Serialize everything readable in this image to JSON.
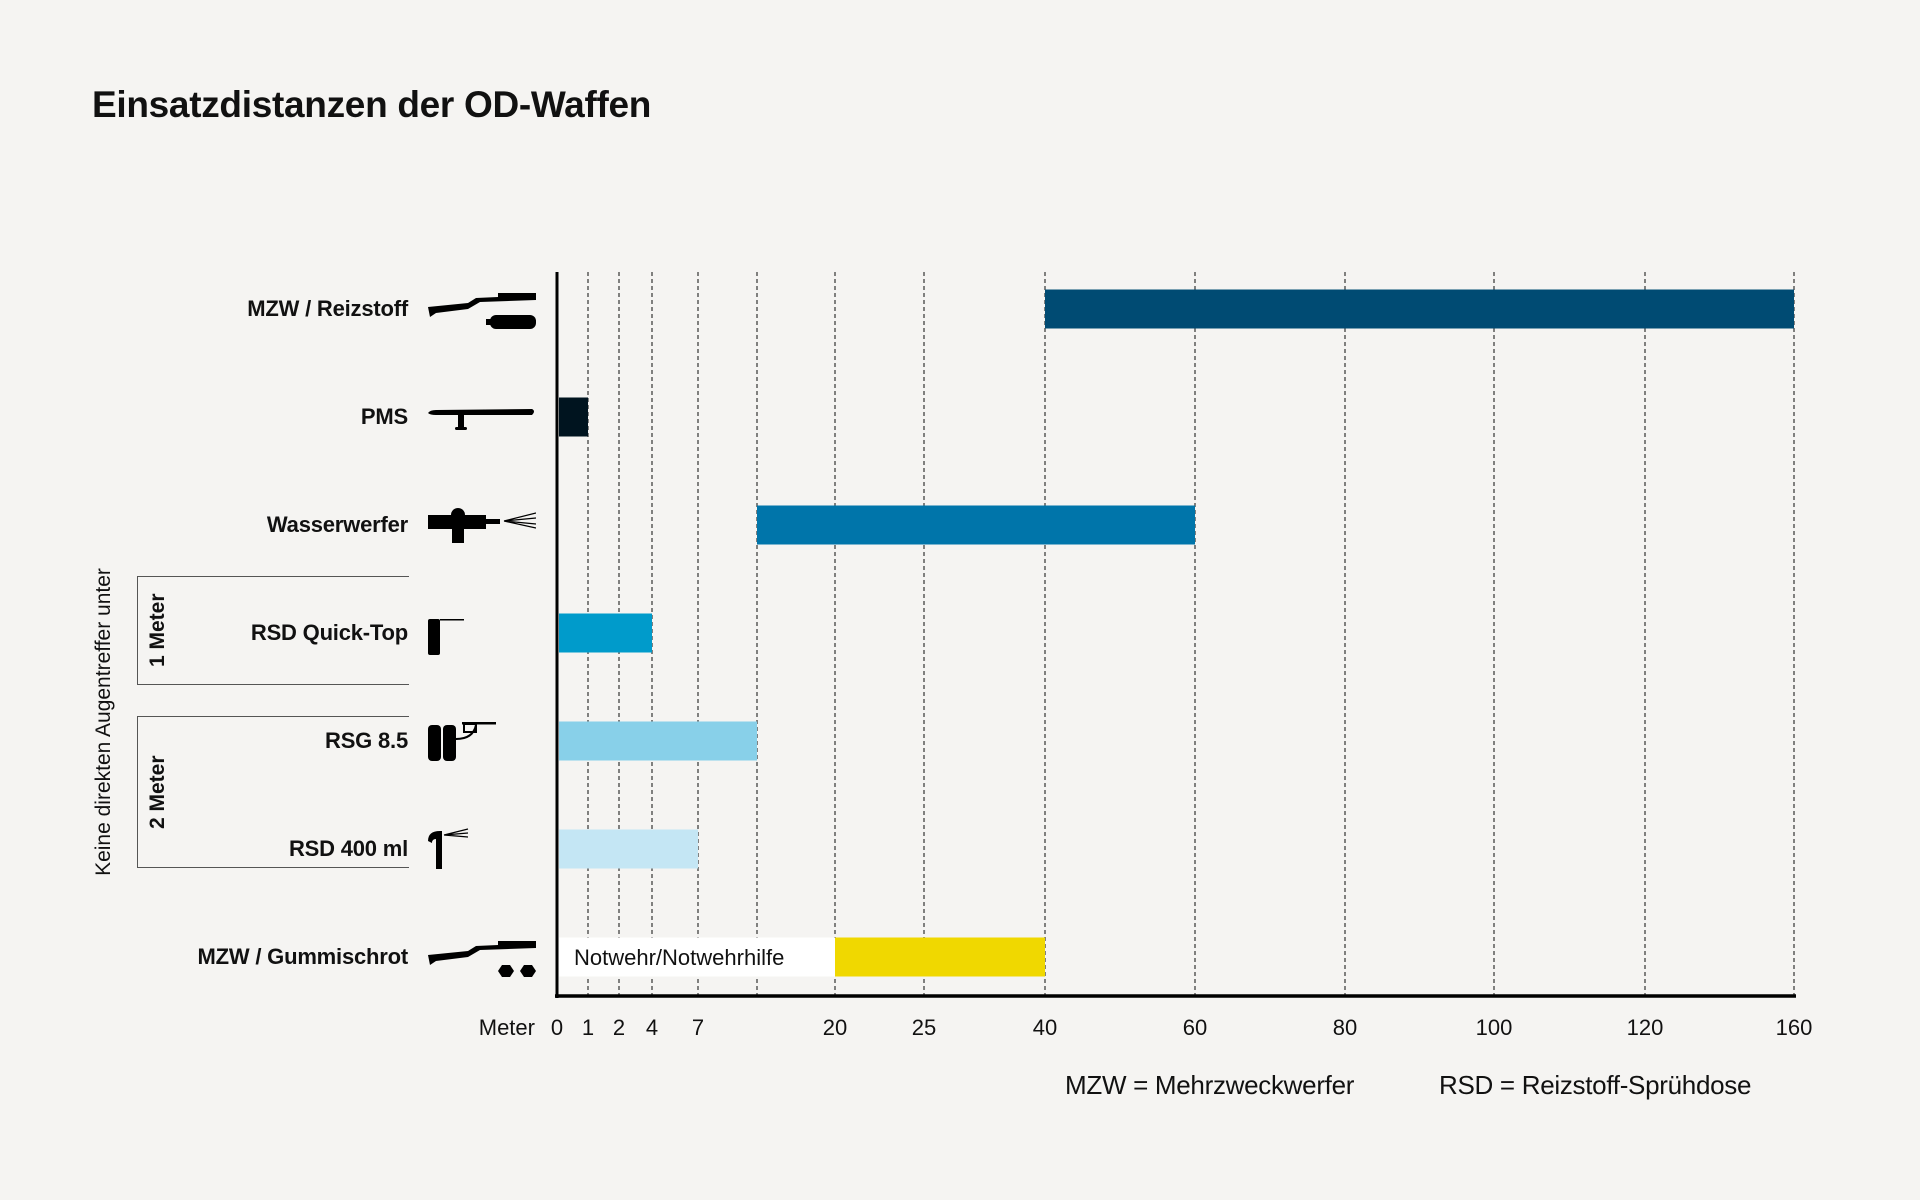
{
  "title": "Einsatzdistanzen der OD-Waffen",
  "side_note": "Keine direkten Augentreffer unter",
  "brackets": [
    {
      "label": "1 Meter"
    },
    {
      "label": "2 Meter"
    }
  ],
  "footnotes": [
    "MZW = Mehrzweckwerfer",
    "RSD = Reizstoff-Sprühdose"
  ],
  "chart_data": {
    "type": "bar",
    "orientation": "horizontal-range",
    "title": "Einsatzdistanzen der OD-Waffen",
    "xlabel": "Meter",
    "xlim": [
      0,
      160
    ],
    "x_scale": "nonlinear (piecewise by ticks)",
    "grid": "vertical dashed",
    "ticks": [
      {
        "value": 0,
        "label": "0"
      },
      {
        "value": 1,
        "label": "1"
      },
      {
        "value": 2,
        "label": "2"
      },
      {
        "value": 4,
        "label": "4"
      },
      {
        "value": 7,
        "label": "7"
      },
      {
        "value": 10,
        "label": ""
      },
      {
        "value": 20,
        "label": "20"
      },
      {
        "value": 25,
        "label": "25"
      },
      {
        "value": 40,
        "label": "40"
      },
      {
        "value": 60,
        "label": "60"
      },
      {
        "value": 80,
        "label": "80"
      },
      {
        "value": 100,
        "label": "100"
      },
      {
        "value": 120,
        "label": "120"
      },
      {
        "value": 160,
        "label": "160"
      }
    ],
    "series": [
      {
        "category": "MZW / Reizstoff",
        "icon": "launcher-with-canister-icon",
        "start": 40,
        "end": 160,
        "color": "#004b73"
      },
      {
        "category": "PMS",
        "icon": "baton-icon",
        "start": 0,
        "end": 1,
        "color": "#00141f"
      },
      {
        "category": "Wasserwerfer",
        "icon": "water-cannon-icon",
        "start": 10,
        "end": 60,
        "color": "#0075aa"
      },
      {
        "category": "RSD Quick-Top",
        "icon": "small-spray-can-icon",
        "start": 0,
        "end": 4,
        "color": "#009bcb"
      },
      {
        "category": "RSG 8.5",
        "icon": "spray-device-tanks-icon",
        "start": 0,
        "end": 10,
        "color": "#88d0e9"
      },
      {
        "category": "RSD 400 ml",
        "icon": "spray-can-icon",
        "start": 0,
        "end": 7,
        "color": "#c4e6f4"
      },
      {
        "category": "MZW / Gummischrot",
        "icon": "launcher-with-rubber-shot-icon",
        "start": 20,
        "end": 40,
        "color": "#f0d800",
        "annotation": {
          "start": 0,
          "end": 20,
          "label": "Notwehr/Notwehrhilfe",
          "color": "#ffffff"
        }
      }
    ]
  }
}
